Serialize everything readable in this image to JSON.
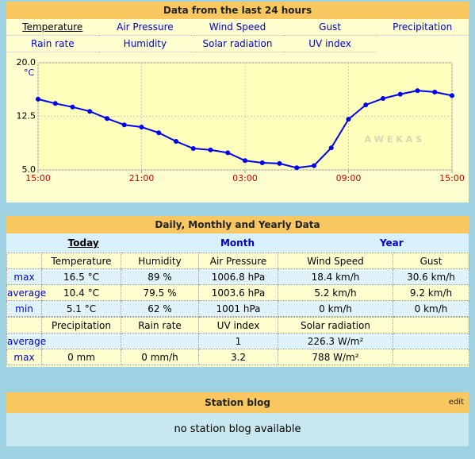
{
  "chart_data": {
    "type": "line",
    "title": "Data from the last 24 hours",
    "tabs": [
      "Temperature",
      "Air Pressure",
      "Wind Speed",
      "Gust",
      "Precipitation",
      "Rain rate",
      "Humidity",
      "Solar radiation",
      "UV index"
    ],
    "y_label": "°C",
    "watermark": "AWEKAS",
    "categories": [
      "15:00",
      null,
      null,
      null,
      null,
      null,
      "21:00",
      null,
      null,
      null,
      null,
      null,
      "03:00",
      null,
      null,
      null,
      null,
      null,
      "09:00",
      null,
      null,
      null,
      null,
      null,
      "15:00"
    ],
    "series": [
      {
        "name": "Temperature",
        "color": "#0000ee",
        "values": [
          14.9,
          14.3,
          13.8,
          13.2,
          12.2,
          11.3,
          11.0,
          10.2,
          9.0,
          8.0,
          7.8,
          7.4,
          6.3,
          6.0,
          5.9,
          5.3,
          5.6,
          8.1,
          12.1,
          14.1,
          15.0,
          15.6,
          16.1,
          15.9,
          15.4
        ]
      }
    ],
    "ylim": [
      5,
      20
    ],
    "yticks": [
      {
        "value": 5,
        "label": "5.0"
      },
      12.5,
      {
        "value": 20,
        "label": "20.0"
      }
    ],
    "grid": true
  },
  "daily": {
    "title": "Daily, Monthly and Yearly Data",
    "tabs": [
      "Today",
      "Month",
      "Year"
    ],
    "table1": {
      "header": [
        null,
        "Temperature",
        "Humidity",
        "Air Pressure",
        "Wind Speed",
        "Gust"
      ],
      "rows": [
        [
          "max",
          "16.5 °C",
          "89 %",
          "1006.8 hPa",
          "18.4 km/h",
          "30.6 km/h"
        ],
        [
          "average",
          "10.4 °C",
          "79.5 %",
          "1003.6 hPa",
          "5.2 km/h",
          "9.2 km/h"
        ],
        [
          "min",
          "5.1 °C",
          "62 %",
          "1001 hPa",
          "0 km/h",
          "0 km/h"
        ]
      ]
    },
    "table2": {
      "header": [
        null,
        "Precipitation",
        "Rain rate",
        "UV index",
        "Solar radiation",
        null
      ],
      "rows": [
        [
          "average",
          null,
          null,
          "1",
          "226.3 W/m²",
          null
        ],
        [
          "max",
          "0 mm",
          "0 mm/h",
          "3.2",
          "788 W/m²",
          null
        ]
      ]
    }
  },
  "blog": {
    "title": "Station blog",
    "edit": "edit",
    "message": "no station blog available"
  }
}
